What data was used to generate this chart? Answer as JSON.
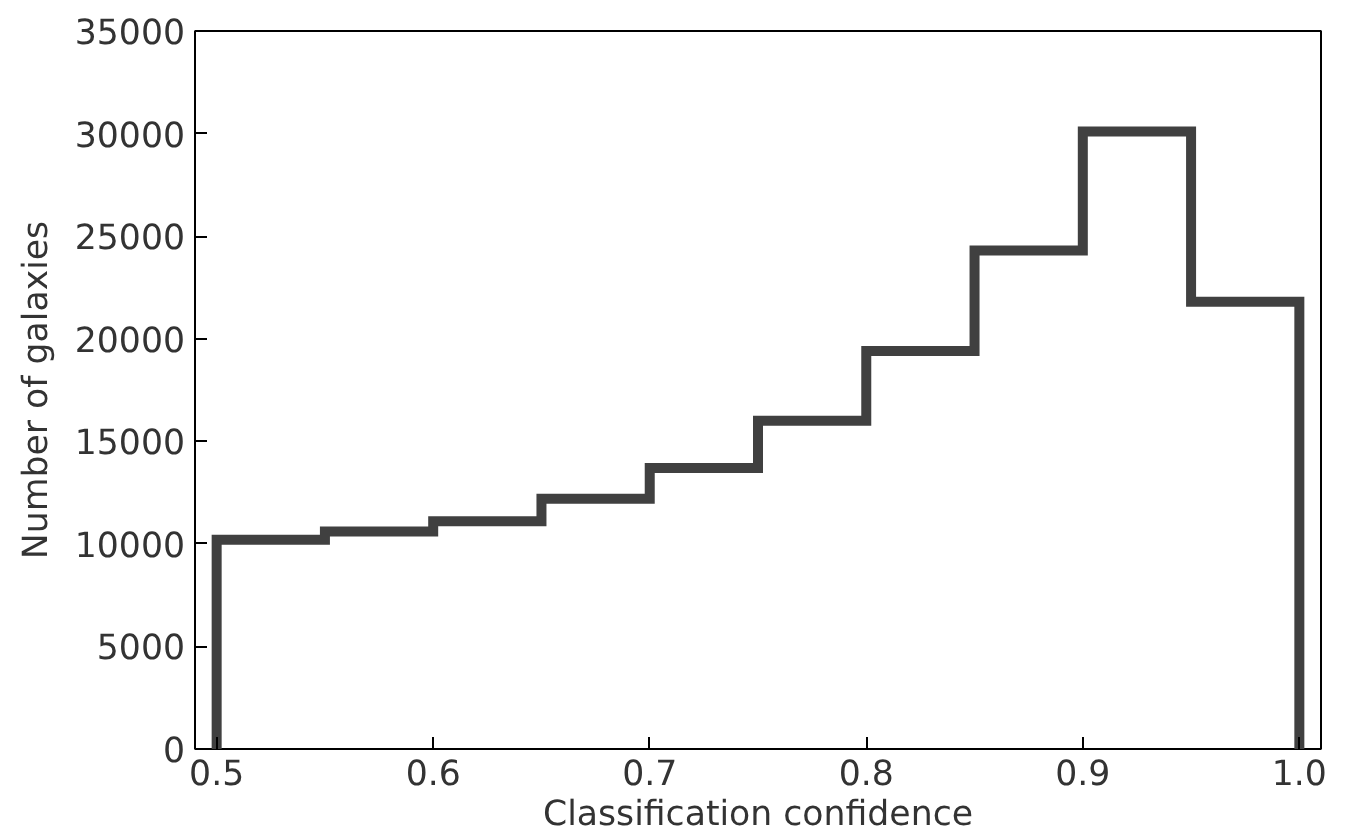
{
  "chart_data": {
    "type": "histogram",
    "xlabel": "Classification confidence",
    "ylabel": "Number of galaxies",
    "bins": [
      0.5,
      0.55,
      0.6,
      0.65,
      0.7,
      0.75,
      0.8,
      0.85,
      0.9,
      0.95,
      1.0
    ],
    "values": [
      10200,
      10600,
      11100,
      12200,
      13700,
      16000,
      19400,
      24300,
      30100,
      21800
    ],
    "color": "#404040",
    "xlim": [
      0.49,
      1.01
    ],
    "ylim": [
      0,
      35000
    ],
    "xticks": [
      0.5,
      0.6,
      0.7,
      0.8,
      0.9,
      {
        "value": 1,
        "label": "1.0"
      }
    ],
    "yticks": [
      0,
      5000,
      10000,
      15000,
      20000,
      25000,
      30000,
      35000
    ],
    "grid": false
  }
}
